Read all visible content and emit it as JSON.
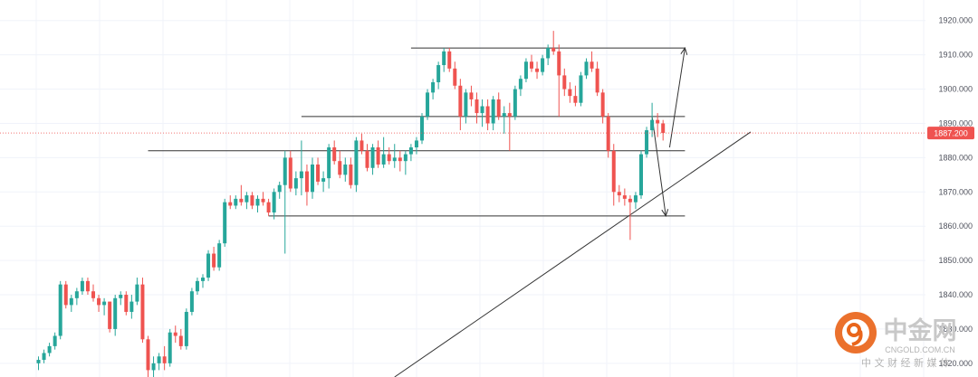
{
  "chart_data": {
    "type": "candlestick",
    "y_axis": {
      "ticks": [
        "1920.000",
        "1910.000",
        "1900.000",
        "1890.000",
        "1880.000",
        "1870.000",
        "1860.000",
        "1850.000",
        "1840.000",
        "1830.000",
        "1820.000"
      ],
      "ylim": [
        1816,
        1926
      ]
    },
    "last_price": {
      "label": "1887.200",
      "value": 1887.2
    },
    "colors": {
      "up": "#26a69a",
      "down": "#ef5350",
      "badge": "#ef5350",
      "lines": "#333333",
      "grid": "#f0f3fa"
    },
    "grid": true,
    "candles": [
      [
        1820,
        1822,
        1818,
        1821
      ],
      [
        1821,
        1824,
        1820,
        1823
      ],
      [
        1823,
        1826,
        1822,
        1825
      ],
      [
        1825,
        1829,
        1824,
        1828
      ],
      [
        1828,
        1844,
        1827,
        1843
      ],
      [
        1843,
        1844,
        1836,
        1837
      ],
      [
        1837,
        1840,
        1835,
        1839
      ],
      [
        1839,
        1842,
        1837,
        1841
      ],
      [
        1841,
        1845,
        1840,
        1844
      ],
      [
        1844,
        1845,
        1840,
        1841
      ],
      [
        1841,
        1843,
        1838,
        1839
      ],
      [
        1839,
        1840,
        1835,
        1837
      ],
      [
        1837,
        1839,
        1834,
        1838
      ],
      [
        1838,
        1838,
        1829,
        1830
      ],
      [
        1830,
        1840,
        1828,
        1839
      ],
      [
        1839,
        1841,
        1837,
        1840
      ],
      [
        1840,
        1841,
        1834,
        1835
      ],
      [
        1835,
        1840,
        1833,
        1838
      ],
      [
        1838,
        1845,
        1837,
        1843
      ],
      [
        1843,
        1845,
        1826,
        1827
      ],
      [
        1827,
        1828,
        1816,
        1818
      ],
      [
        1818,
        1822,
        1816,
        1820
      ],
      [
        1820,
        1823,
        1818,
        1822
      ],
      [
        1822,
        1825,
        1818,
        1820
      ],
      [
        1820,
        1830,
        1819,
        1829
      ],
      [
        1829,
        1831,
        1826,
        1828
      ],
      [
        1828,
        1830,
        1824,
        1825
      ],
      [
        1825,
        1836,
        1824,
        1835
      ],
      [
        1835,
        1842,
        1834,
        1841
      ],
      [
        1841,
        1845,
        1840,
        1844
      ],
      [
        1844,
        1846,
        1842,
        1845
      ],
      [
        1845,
        1853,
        1844,
        1852
      ],
      [
        1852,
        1854,
        1847,
        1848
      ],
      [
        1848,
        1856,
        1847,
        1855
      ],
      [
        1855,
        1868,
        1854,
        1867
      ],
      [
        1867,
        1869,
        1865,
        1866
      ],
      [
        1866,
        1869,
        1865,
        1868
      ],
      [
        1868,
        1872,
        1866,
        1867
      ],
      [
        1867,
        1870,
        1865,
        1869
      ],
      [
        1869,
        1870,
        1865,
        1866
      ],
      [
        1866,
        1869,
        1864,
        1868
      ],
      [
        1868,
        1870,
        1866,
        1867
      ],
      [
        1867,
        1868,
        1863,
        1864
      ],
      [
        1864,
        1871,
        1862,
        1870
      ],
      [
        1870,
        1873,
        1868,
        1872
      ],
      [
        1872,
        1882,
        1852,
        1880
      ],
      [
        1880,
        1882,
        1870,
        1871
      ],
      [
        1871,
        1876,
        1869,
        1874
      ],
      [
        1874,
        1885,
        1869,
        1876
      ],
      [
        1876,
        1878,
        1866,
        1870
      ],
      [
        1870,
        1880,
        1868,
        1878
      ],
      [
        1878,
        1880,
        1872,
        1873
      ],
      [
        1873,
        1876,
        1870,
        1874
      ],
      [
        1874,
        1884,
        1871,
        1883
      ],
      [
        1883,
        1885,
        1878,
        1879
      ],
      [
        1879,
        1882,
        1874,
        1875
      ],
      [
        1875,
        1880,
        1873,
        1878
      ],
      [
        1878,
        1880,
        1871,
        1872
      ],
      [
        1872,
        1886,
        1870,
        1885
      ],
      [
        1885,
        1887,
        1881,
        1882
      ],
      [
        1882,
        1884,
        1876,
        1877
      ],
      [
        1877,
        1884,
        1875,
        1883
      ],
      [
        1883,
        1885,
        1877,
        1878
      ],
      [
        1878,
        1886,
        1877,
        1881
      ],
      [
        1881,
        1883,
        1878,
        1879
      ],
      [
        1879,
        1884,
        1877,
        1880
      ],
      [
        1880,
        1882,
        1876,
        1879
      ],
      [
        1879,
        1882,
        1875,
        1881
      ],
      [
        1881,
        1884,
        1879,
        1883
      ],
      [
        1883,
        1886,
        1881,
        1885
      ],
      [
        1885,
        1893,
        1884,
        1892
      ],
      [
        1892,
        1900,
        1891,
        1899
      ],
      [
        1899,
        1903,
        1897,
        1902
      ],
      [
        1902,
        1908,
        1900,
        1907
      ],
      [
        1907,
        1912,
        1905,
        1911
      ],
      [
        1911,
        1912,
        1905,
        1906
      ],
      [
        1906,
        1908,
        1900,
        1901
      ],
      [
        1901,
        1903,
        1888,
        1892
      ],
      [
        1892,
        1900,
        1890,
        1899
      ],
      [
        1899,
        1901,
        1895,
        1897
      ],
      [
        1897,
        1899,
        1890,
        1893
      ],
      [
        1893,
        1897,
        1889,
        1895
      ],
      [
        1895,
        1897,
        1888,
        1890
      ],
      [
        1890,
        1898,
        1888,
        1897
      ],
      [
        1897,
        1899,
        1891,
        1892
      ],
      [
        1892,
        1895,
        1887,
        1893
      ],
      [
        1893,
        1896,
        1882,
        1892
      ],
      [
        1892,
        1901,
        1891,
        1900
      ],
      [
        1900,
        1904,
        1898,
        1903
      ],
      [
        1903,
        1909,
        1902,
        1908
      ],
      [
        1908,
        1910,
        1905,
        1906
      ],
      [
        1906,
        1908,
        1903,
        1905
      ],
      [
        1905,
        1910,
        1904,
        1909
      ],
      [
        1909,
        1913,
        1907,
        1912
      ],
      [
        1912,
        1917,
        1910,
        1911
      ],
      [
        1911,
        1913,
        1892,
        1904
      ],
      [
        1904,
        1906,
        1898,
        1900
      ],
      [
        1900,
        1902,
        1896,
        1898
      ],
      [
        1898,
        1901,
        1895,
        1896
      ],
      [
        1896,
        1905,
        1895,
        1904
      ],
      [
        1904,
        1909,
        1903,
        1908
      ],
      [
        1908,
        1911,
        1905,
        1906
      ],
      [
        1906,
        1908,
        1898,
        1899
      ],
      [
        1899,
        1900,
        1890,
        1892
      ],
      [
        1892,
        1893,
        1880,
        1882
      ],
      [
        1882,
        1884,
        1866,
        1870
      ],
      [
        1870,
        1872,
        1867,
        1869
      ],
      [
        1869,
        1871,
        1866,
        1868
      ],
      [
        1868,
        1869,
        1856,
        1867
      ],
      [
        1867,
        1870,
        1865,
        1869
      ],
      [
        1869,
        1882,
        1868,
        1881
      ],
      [
        1881,
        1889,
        1880,
        1888
      ],
      [
        1888,
        1896,
        1886,
        1891
      ],
      [
        1891,
        1893,
        1886,
        1890
      ],
      [
        1890,
        1891,
        1885,
        1887.2
      ]
    ],
    "annotations": {
      "horizontal_lines": [
        {
          "level": 1912,
          "from": 68,
          "to": 118
        },
        {
          "level": 1892,
          "from": 48,
          "to": 118
        },
        {
          "level": 1882,
          "from": 20,
          "to": 118
        },
        {
          "level": 1863,
          "from": 42,
          "to": 118
        }
      ],
      "trendline": {
        "from": [
          65,
          1816
        ],
        "to": [
          130,
          1887.5
        ]
      },
      "arrows": [
        {
          "from": [
            112,
            1892
          ],
          "to": [
            114.5,
            1863
          ]
        },
        {
          "from": [
            115.2,
            1883
          ],
          "to": [
            118,
            1912
          ]
        }
      ]
    }
  },
  "watermark": {
    "brand": "中金网",
    "domain": "CNGOLD.COM.CN",
    "tagline": "中 文 财 经 新 媒 体"
  }
}
